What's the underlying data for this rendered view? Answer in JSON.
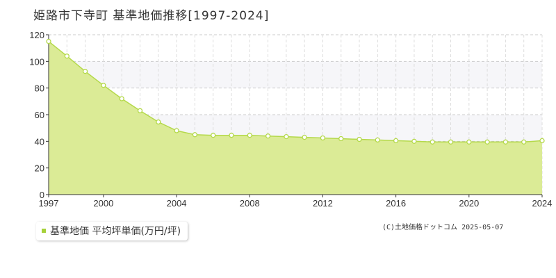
{
  "title": "姫路市下寺町 基準地価推移[1997-2024]",
  "legend": {
    "label": "基準地価 平均坪単価(万円/坪)",
    "color": "#a6d13a"
  },
  "credit": "(C)土地価格ドットコム 2025-05-07",
  "colors": {
    "fill": "#dbeb96",
    "line": "#b4d94a",
    "marker_stroke": "#b4d94a",
    "marker_fill": "#ffffff"
  },
  "chart_data": {
    "type": "area",
    "title": "姫路市下寺町 基準地価推移[1997-2024]",
    "xlabel": "",
    "ylabel": "",
    "xlim": [
      1997,
      2024
    ],
    "ylim": [
      0,
      120
    ],
    "grid": true,
    "legend_position": "bottom-left",
    "x_ticks": [
      "1997",
      "2000",
      "2004",
      "2008",
      "2012",
      "2016",
      "2020",
      "2024"
    ],
    "y_ticks": [
      "0",
      "20",
      "40",
      "60",
      "80",
      "100",
      "120"
    ],
    "series": [
      {
        "name": "基準地価 平均坪単価(万円/坪)",
        "x": [
          1997,
          1998,
          1999,
          2000,
          2001,
          2002,
          2003,
          2004,
          2005,
          2006,
          2007,
          2008,
          2009,
          2010,
          2011,
          2012,
          2013,
          2014,
          2015,
          2016,
          2017,
          2018,
          2019,
          2020,
          2021,
          2022,
          2023,
          2024
        ],
        "values": [
          115,
          104,
          92.5,
          82,
          72,
          63,
          54.5,
          48,
          45,
          44.5,
          44.5,
          44.5,
          44,
          43.5,
          43,
          42.5,
          42,
          41.5,
          41,
          40.5,
          40,
          39.5,
          39.5,
          39.5,
          39.5,
          39.5,
          39.5,
          40.5
        ]
      }
    ]
  }
}
